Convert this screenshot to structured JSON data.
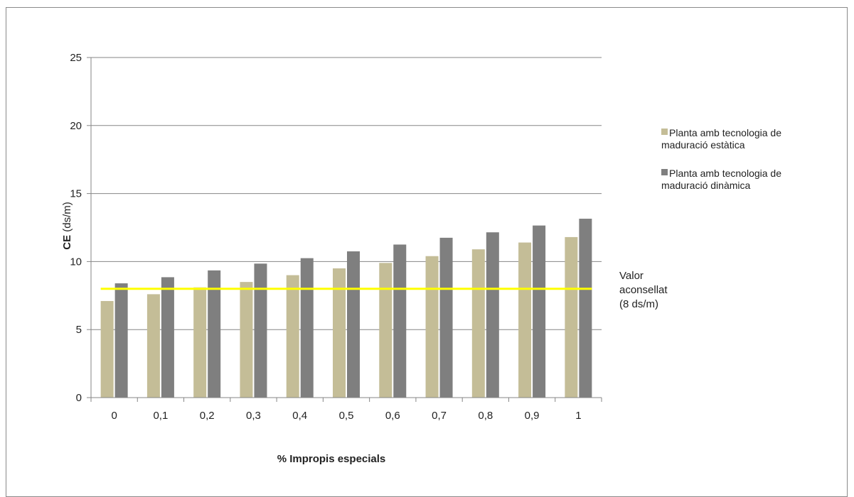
{
  "chart_data": {
    "type": "bar",
    "title": "",
    "xlabel": "% Impropis especials",
    "ylabel_bold": "CE",
    "ylabel_rest": " (ds/m)",
    "ylim": [
      0,
      25
    ],
    "yticks": [
      0,
      5,
      10,
      15,
      20,
      25
    ],
    "grid": true,
    "legend_position": "right",
    "categories": [
      "0",
      "0,1",
      "0,2",
      "0,3",
      "0,4",
      "0,5",
      "0,6",
      "0,7",
      "0,8",
      "0,9",
      "1"
    ],
    "series": [
      {
        "name_lines": [
          "Planta amb tecnologia de",
          "maduració estàtica"
        ],
        "color": "#c4bd97",
        "values": [
          7.1,
          7.6,
          8.1,
          8.5,
          9.0,
          9.5,
          9.9,
          10.4,
          10.9,
          11.4,
          11.8
        ]
      },
      {
        "name_lines": [
          "Planta amb tecnologia de",
          "maduració dinàmica"
        ],
        "color": "#7f7f7f",
        "values": [
          8.4,
          8.85,
          9.35,
          9.85,
          10.25,
          10.75,
          11.25,
          11.75,
          12.15,
          12.65,
          13.15
        ]
      }
    ],
    "reference_line": {
      "value": 8,
      "color": "#ffff00",
      "label_lines": [
        "Valor",
        "aconsellat",
        "(8 ds/m)"
      ]
    },
    "axis_color": "#868686"
  }
}
